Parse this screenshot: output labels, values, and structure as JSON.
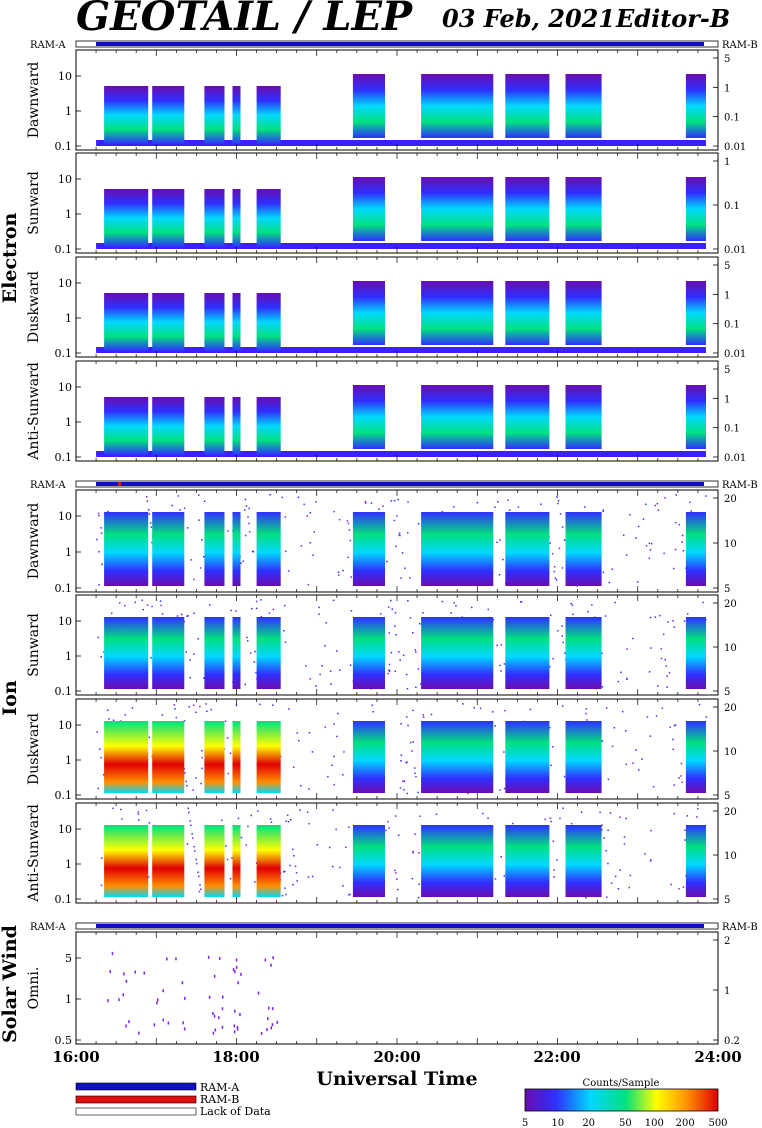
{
  "header": {
    "title": "GEOTAIL / LEP",
    "date": "03 Feb, 2021",
    "editor": "Editor-B"
  },
  "chart_data": {
    "type": "heatmap",
    "x_axis": {
      "label": "Universal Time",
      "ticks": [
        "16:00",
        "18:00",
        "20:00",
        "22:00",
        "24:00"
      ],
      "range_hours": [
        16,
        24
      ]
    },
    "groups": [
      {
        "name": "Electron",
        "ram_left": "RAM-A",
        "ram_right": "RAM-B",
        "panels": [
          {
            "label": "Dawnward",
            "left_ticks": [
              "10",
              "1",
              "0.1"
            ],
            "right_ticks": [
              "5",
              "1",
              "0.1",
              "0.01"
            ]
          },
          {
            "label": "Sunward",
            "left_ticks": [
              "10",
              "1",
              "0.1"
            ],
            "right_ticks": [
              "1",
              "0.1",
              "0.01"
            ]
          },
          {
            "label": "Duskward",
            "left_ticks": [
              "10",
              "1",
              "0.1"
            ],
            "right_ticks": [
              "5",
              "1",
              "0.1",
              "0.01"
            ]
          },
          {
            "label": "Anti-Sunward",
            "left_ticks": [
              "10",
              "1",
              "0.1"
            ],
            "right_ticks": [
              "5",
              "1",
              "0.1",
              "0.01"
            ]
          }
        ]
      },
      {
        "name": "Ion",
        "ram_left": "RAM-A",
        "ram_right": "RAM-B",
        "panels": [
          {
            "label": "Dawnward",
            "left_ticks": [
              "10",
              "1",
              "0.1"
            ],
            "right_ticks": [
              "20",
              "10",
              "5"
            ]
          },
          {
            "label": "Sunward",
            "left_ticks": [
              "10",
              "1",
              "0.1"
            ],
            "right_ticks": [
              "20",
              "10",
              "5"
            ]
          },
          {
            "label": "Duskward",
            "left_ticks": [
              "10",
              "1",
              "0.1"
            ],
            "right_ticks": [
              "20",
              "10",
              "5"
            ]
          },
          {
            "label": "Anti-Sunward",
            "left_ticks": [
              "10",
              "1",
              "0.1"
            ],
            "right_ticks": [
              "20",
              "10",
              "5"
            ]
          }
        ]
      },
      {
        "name": "Solar Wind",
        "ram_left": "RAM-A",
        "ram_right": "RAM-B",
        "panels": [
          {
            "label": "Omni.",
            "left_ticks": [
              "5",
              "1",
              "0.5"
            ],
            "right_ticks": [
              "2",
              "1",
              "0.2"
            ]
          }
        ]
      }
    ],
    "activity_intervals_hours": [
      [
        16.35,
        16.9
      ],
      [
        16.95,
        17.35
      ],
      [
        17.6,
        17.85
      ],
      [
        17.95,
        18.05
      ],
      [
        18.25,
        18.55
      ],
      [
        19.45,
        19.85
      ],
      [
        20.3,
        21.2
      ],
      [
        21.35,
        21.9
      ],
      [
        22.1,
        22.55
      ],
      [
        23.6,
        23.85
      ]
    ],
    "colorbar": {
      "title": "Counts/Sample",
      "ticks": [
        "5",
        "10",
        "20",
        "50",
        "100",
        "200",
        "500"
      ],
      "colors": [
        "#6a0dad",
        "#2f2fff",
        "#00d8ff",
        "#00e080",
        "#ffff00",
        "#ff9000",
        "#e00000"
      ]
    },
    "legend": [
      {
        "label": "RAM-A",
        "color": "#1010c0"
      },
      {
        "label": "RAM-B",
        "color": "#e01010"
      },
      {
        "label": "Lack of Data",
        "color": "#ffffff"
      }
    ]
  }
}
